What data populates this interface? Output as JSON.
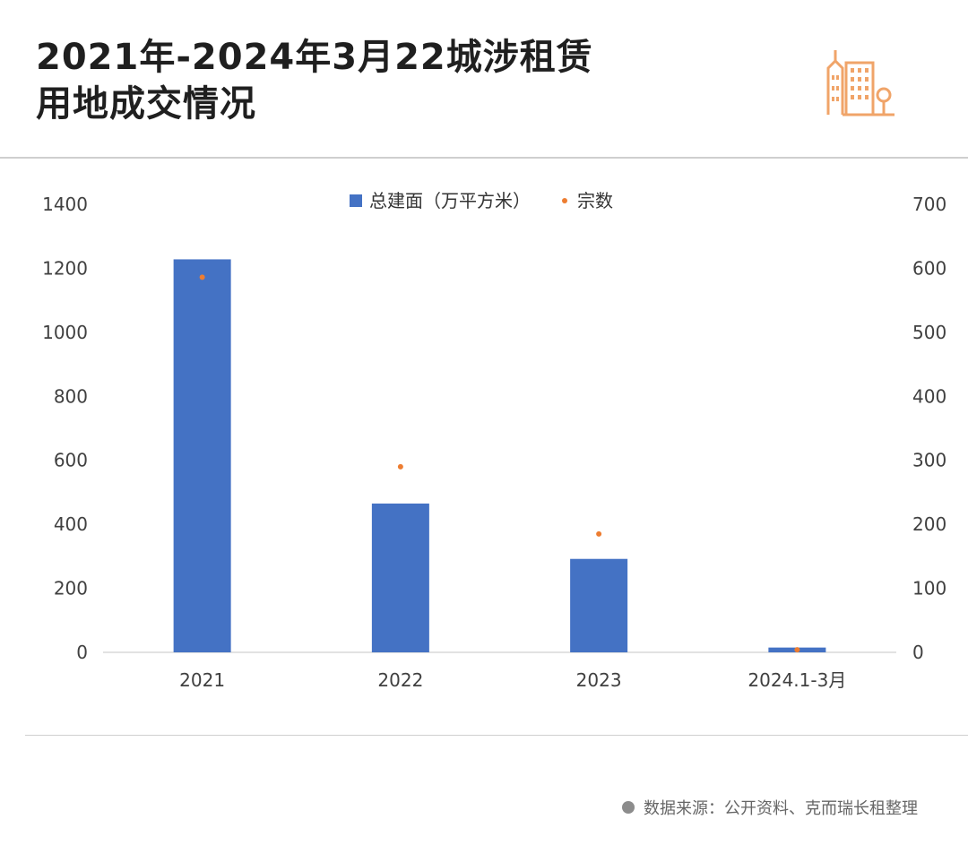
{
  "title": {
    "line1": "2021年-2024年3月22城涉租赁",
    "line2": "用地成交情况"
  },
  "logo_icon": "city-buildings-icon",
  "colors": {
    "bar": "#4472c4",
    "dot": "#ed7d31",
    "accent": "#f0a469"
  },
  "source": {
    "text": "数据来源：公开资料、克而瑞长租整理"
  },
  "chart_data": {
    "type": "bar",
    "categories": [
      "2021",
      "2022",
      "2023",
      "2024.1-3月"
    ],
    "series": [
      {
        "name": "总建面（万平方米）",
        "type": "bar",
        "axis": "left",
        "values": [
          1228,
          465,
          292,
          15
        ]
      },
      {
        "name": "宗数",
        "type": "scatter",
        "axis": "right",
        "values": [
          586,
          290,
          185,
          4
        ]
      }
    ],
    "y_left": {
      "min": 0,
      "max": 1400,
      "ticks": [
        "0",
        "200",
        "400",
        "600",
        "800",
        "1000",
        "1200",
        "1400"
      ]
    },
    "y_right": {
      "min": 0,
      "max": 700,
      "ticks": [
        "0",
        "100",
        "200",
        "300",
        "400",
        "500",
        "600",
        "700"
      ]
    },
    "legend": "top-center",
    "grid": false
  }
}
